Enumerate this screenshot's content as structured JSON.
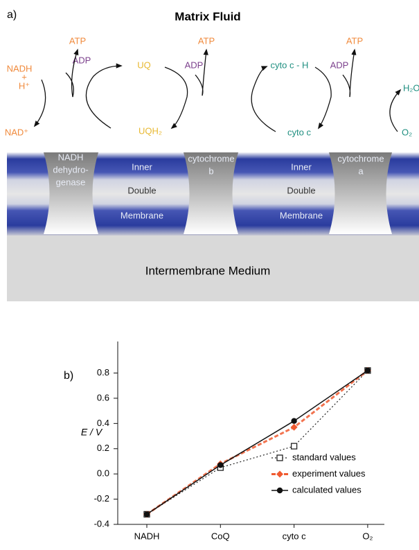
{
  "diagram": {
    "label": "a)",
    "top_title": "Matrix Fluid",
    "bottom_title": "Intermembrane Medium",
    "complex_1": [
      "NADH",
      "dehydro-",
      "genase"
    ],
    "complex_3": [
      "cytochrome",
      "b"
    ],
    "complex_4": [
      "cytochrome",
      "a"
    ],
    "membrane": [
      "Inner",
      "Double",
      "Membrane"
    ],
    "species": [
      "ADP",
      "ATP",
      "NADH",
      "+",
      "H⁺",
      "NAD⁺",
      "UQ",
      "UQH₂",
      "ADP",
      "ATP",
      "cyto c - H",
      "cyto c",
      "ADP",
      "ATP",
      "H₂O",
      "O₂"
    ]
  },
  "chart_data": {
    "type": "line",
    "label": "b)",
    "y_label": "E / V",
    "categories": [
      "NADH",
      "CoQ",
      "cyto c",
      "O₂"
    ],
    "ylim": [
      -0.4,
      1.05
    ],
    "yticks": [
      -0.4,
      -0.2,
      {
        "value": 0,
        "label": "0.0"
      },
      0.2,
      0.4,
      0.6,
      0.8
    ],
    "legend": "lower right",
    "series": [
      {
        "name": "standard values",
        "color": "#222222",
        "values": [
          -0.32,
          0.05,
          0.22,
          0.82
        ]
      },
      {
        "name": "experiment values",
        "color": "#f05a30",
        "values": [
          -0.32,
          0.08,
          0.37,
          0.82
        ]
      },
      {
        "name": "calculated values",
        "color": "#111111",
        "values": [
          -0.32,
          0.07,
          0.42,
          0.82
        ]
      }
    ]
  }
}
